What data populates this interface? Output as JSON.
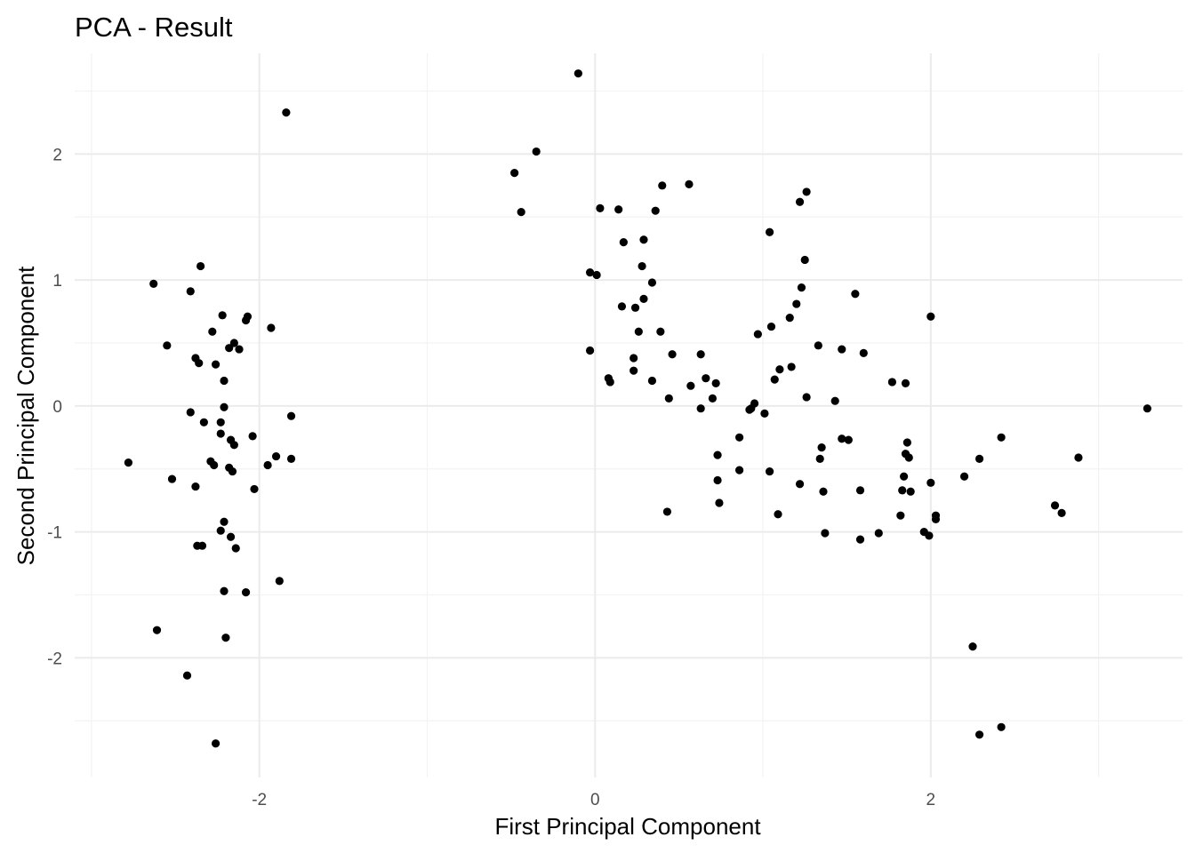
{
  "chart_data": {
    "type": "scatter",
    "title": "PCA - Result",
    "xlabel": "First Principal Component",
    "ylabel": "Second Principal Component",
    "xlim": [
      -3.1,
      3.5
    ],
    "ylim": [
      -2.95,
      2.8
    ],
    "x_ticks": [
      -2,
      0,
      2
    ],
    "y_ticks": [
      -2,
      -1,
      0,
      1,
      2
    ],
    "x_tick_labels": [
      "-2",
      "0",
      "2"
    ],
    "y_tick_labels": [
      "-2",
      "-1",
      "0",
      "1",
      "2"
    ],
    "grid": true,
    "point_color": "#000000",
    "points": [
      [
        -1.84,
        2.33
      ],
      [
        -2.63,
        0.97
      ],
      [
        -2.35,
        1.11
      ],
      [
        -2.41,
        0.91
      ],
      [
        -2.22,
        0.72
      ],
      [
        -2.07,
        0.71
      ],
      [
        -2.08,
        0.68
      ],
      [
        -1.93,
        0.62
      ],
      [
        -2.28,
        0.59
      ],
      [
        -2.15,
        0.5
      ],
      [
        -2.55,
        0.48
      ],
      [
        -2.18,
        0.46
      ],
      [
        -2.12,
        0.45
      ],
      [
        -2.38,
        0.38
      ],
      [
        -2.36,
        0.34
      ],
      [
        -2.26,
        0.33
      ],
      [
        -2.21,
        0.2
      ],
      [
        -2.21,
        -0.01
      ],
      [
        -2.41,
        -0.05
      ],
      [
        -1.81,
        -0.08
      ],
      [
        -2.33,
        -0.13
      ],
      [
        -2.23,
        -0.13
      ],
      [
        -2.23,
        -0.22
      ],
      [
        -2.04,
        -0.24
      ],
      [
        -2.17,
        -0.27
      ],
      [
        -2.15,
        -0.31
      ],
      [
        -1.9,
        -0.4
      ],
      [
        -1.81,
        -0.42
      ],
      [
        -2.78,
        -0.45
      ],
      [
        -2.29,
        -0.44
      ],
      [
        -2.27,
        -0.47
      ],
      [
        -2.18,
        -0.49
      ],
      [
        -2.16,
        -0.52
      ],
      [
        -1.95,
        -0.47
      ],
      [
        -2.52,
        -0.58
      ],
      [
        -2.38,
        -0.64
      ],
      [
        -2.03,
        -0.66
      ],
      [
        -2.21,
        -0.92
      ],
      [
        -2.23,
        -0.99
      ],
      [
        -2.17,
        -1.04
      ],
      [
        -2.37,
        -1.11
      ],
      [
        -2.34,
        -1.11
      ],
      [
        -2.14,
        -1.13
      ],
      [
        -1.88,
        -1.39
      ],
      [
        -2.21,
        -1.47
      ],
      [
        -2.08,
        -1.48
      ],
      [
        -2.61,
        -1.78
      ],
      [
        -2.2,
        -1.84
      ],
      [
        -2.43,
        -2.14
      ],
      [
        -2.26,
        -2.68
      ],
      [
        -0.1,
        2.64
      ],
      [
        -0.35,
        2.02
      ],
      [
        -0.48,
        1.85
      ],
      [
        -0.44,
        1.54
      ],
      [
        0.03,
        1.57
      ],
      [
        0.14,
        1.56
      ],
      [
        0.36,
        1.55
      ],
      [
        0.4,
        1.75
      ],
      [
        0.56,
        1.76
      ],
      [
        0.17,
        1.3
      ],
      [
        0.29,
        1.32
      ],
      [
        0.28,
        1.11
      ],
      [
        -0.03,
        1.06
      ],
      [
        0.01,
        1.04
      ],
      [
        0.34,
        0.98
      ],
      [
        0.29,
        0.85
      ],
      [
        0.16,
        0.79
      ],
      [
        0.24,
        0.78
      ],
      [
        0.26,
        0.59
      ],
      [
        0.39,
        0.59
      ],
      [
        -0.03,
        0.44
      ],
      [
        0.23,
        0.38
      ],
      [
        0.46,
        0.41
      ],
      [
        0.63,
        0.41
      ],
      [
        0.23,
        0.28
      ],
      [
        0.08,
        0.22
      ],
      [
        0.09,
        0.19
      ],
      [
        0.34,
        0.2
      ],
      [
        0.66,
        0.22
      ],
      [
        0.72,
        0.18
      ],
      [
        0.57,
        0.16
      ],
      [
        0.44,
        0.06
      ],
      [
        0.7,
        0.06
      ],
      [
        0.63,
        -0.02
      ],
      [
        0.43,
        -0.84
      ],
      [
        0.73,
        -0.39
      ],
      [
        0.73,
        -0.59
      ],
      [
        0.74,
        -0.77
      ],
      [
        1.04,
        1.38
      ],
      [
        1.22,
        1.62
      ],
      [
        1.26,
        1.7
      ],
      [
        1.25,
        1.16
      ],
      [
        1.23,
        0.94
      ],
      [
        1.2,
        0.81
      ],
      [
        1.16,
        0.7
      ],
      [
        1.05,
        0.63
      ],
      [
        0.97,
        0.57
      ],
      [
        1.17,
        0.31
      ],
      [
        1.1,
        0.29
      ],
      [
        1.07,
        0.21
      ],
      [
        1.33,
        0.48
      ],
      [
        1.47,
        0.45
      ],
      [
        1.55,
        0.89
      ],
      [
        1.6,
        0.42
      ],
      [
        1.26,
        0.07
      ],
      [
        1.43,
        0.04
      ],
      [
        0.95,
        0.02
      ],
      [
        0.93,
        -0.02
      ],
      [
        0.92,
        -0.03
      ],
      [
        1.01,
        -0.06
      ],
      [
        0.86,
        -0.25
      ],
      [
        1.47,
        -0.26
      ],
      [
        1.51,
        -0.27
      ],
      [
        1.35,
        -0.33
      ],
      [
        1.34,
        -0.42
      ],
      [
        0.86,
        -0.51
      ],
      [
        1.04,
        -0.52
      ],
      [
        1.22,
        -0.62
      ],
      [
        1.36,
        -0.68
      ],
      [
        1.58,
        -0.67
      ],
      [
        1.09,
        -0.86
      ],
      [
        1.37,
        -1.01
      ],
      [
        1.58,
        -1.06
      ],
      [
        1.69,
        -1.01
      ],
      [
        1.77,
        0.19
      ],
      [
        1.85,
        0.18
      ],
      [
        2.0,
        0.71
      ],
      [
        1.86,
        -0.29
      ],
      [
        1.85,
        -0.38
      ],
      [
        1.87,
        -0.41
      ],
      [
        1.84,
        -0.56
      ],
      [
        1.83,
        -0.67
      ],
      [
        1.88,
        -0.68
      ],
      [
        2.0,
        -0.61
      ],
      [
        1.82,
        -0.87
      ],
      [
        2.03,
        -0.87
      ],
      [
        2.03,
        -0.9
      ],
      [
        1.96,
        -1.0
      ],
      [
        1.99,
        -1.03
      ],
      [
        2.2,
        -0.56
      ],
      [
        2.29,
        -0.42
      ],
      [
        2.42,
        -0.25
      ],
      [
        2.74,
        -0.79
      ],
      [
        2.78,
        -0.85
      ],
      [
        2.88,
        -0.41
      ],
      [
        3.29,
        -0.02
      ],
      [
        2.25,
        -1.91
      ],
      [
        2.29,
        -2.61
      ],
      [
        2.42,
        -2.55
      ]
    ]
  }
}
